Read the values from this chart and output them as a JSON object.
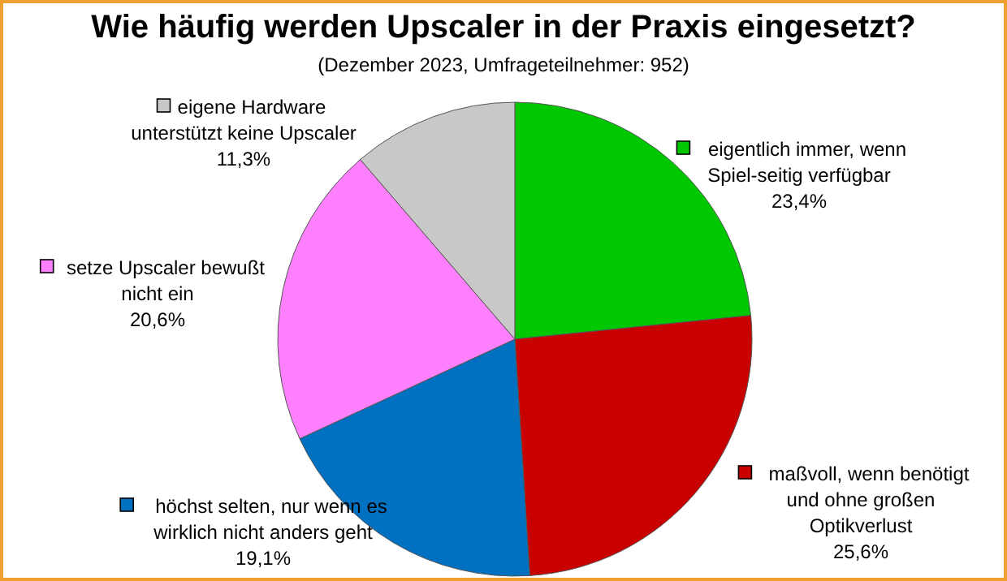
{
  "chart_data": {
    "type": "pie",
    "title": "Wie häufig werden Upscaler in der Praxis eingesetzt?",
    "subtitle": "(Dezember 2023, Umfrageteilnehmer: 952)",
    "categories": [
      "eigentlich immer, wenn Spiel-seitig verfügbar",
      "maßvoll, wenn benötigt und ohne großen Optikverlust",
      "höchst selten, nur wenn es wirklich nicht anders geht",
      "setze Upscaler bewußt nicht ein",
      "eigene Hardware unterstützt keine Upscaler"
    ],
    "values": [
      23.4,
      25.6,
      19.1,
      20.6,
      11.3
    ],
    "value_labels": [
      "23,4%",
      "25,6%",
      "19,1%",
      "20,6%",
      "11,3%"
    ],
    "colors": [
      "#00c800",
      "#c80000",
      "#0070c0",
      "#ff80ff",
      "#c8c8c8"
    ],
    "legend": true
  }
}
